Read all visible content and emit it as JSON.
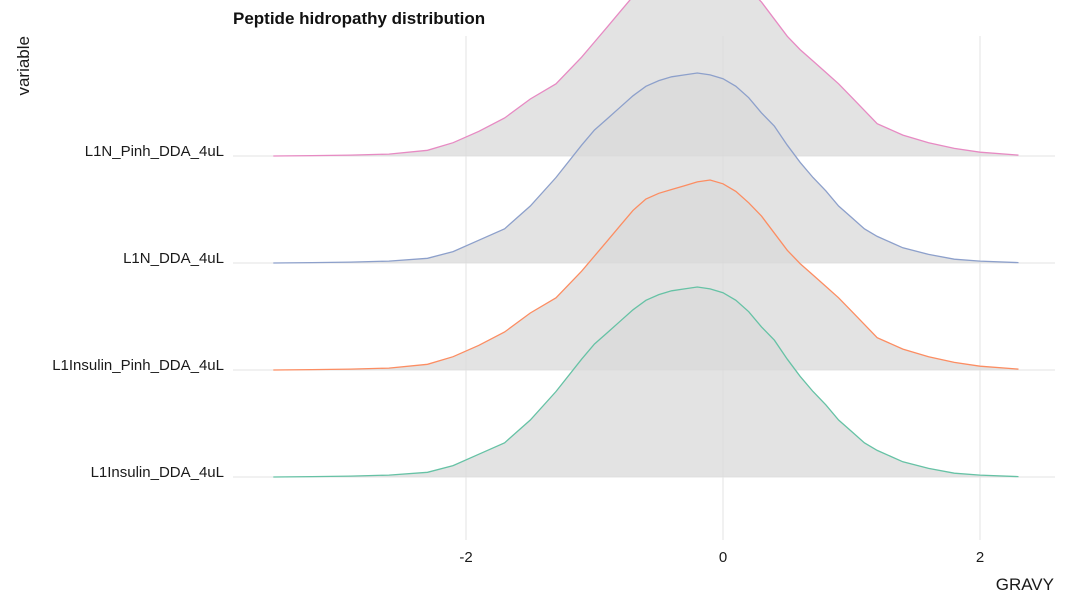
{
  "chart_data": {
    "type": "area",
    "title": "Peptide hidropathy distribution",
    "xlabel": "GRAVY",
    "ylabel": "variable",
    "xlim": [
      -3.6,
      2.6
    ],
    "x_ticks": [
      -2,
      0,
      2
    ],
    "x_tick_labels": [
      "-2",
      "0",
      "2"
    ],
    "grid": true,
    "fill_color": "#d9d9d9",
    "x": [
      -3.5,
      -3.2,
      -2.9,
      -2.6,
      -2.3,
      -2.1,
      -1.9,
      -1.7,
      -1.5,
      -1.3,
      -1.1,
      -1.0,
      -0.9,
      -0.8,
      -0.7,
      -0.6,
      -0.5,
      -0.4,
      -0.3,
      -0.2,
      -0.1,
      0.0,
      0.1,
      0.2,
      0.3,
      0.4,
      0.5,
      0.6,
      0.7,
      0.8,
      0.9,
      1.0,
      1.1,
      1.2,
      1.4,
      1.6,
      1.8,
      2.0,
      2.3
    ],
    "series": [
      {
        "name": "L1Insulin_DDA_4uL",
        "color": "#66c2a5",
        "density": [
          0.0,
          0.002,
          0.005,
          0.01,
          0.025,
          0.06,
          0.12,
          0.18,
          0.3,
          0.45,
          0.62,
          0.7,
          0.76,
          0.82,
          0.88,
          0.93,
          0.96,
          0.98,
          0.99,
          1.0,
          0.99,
          0.97,
          0.93,
          0.87,
          0.79,
          0.72,
          0.62,
          0.53,
          0.45,
          0.38,
          0.3,
          0.24,
          0.18,
          0.14,
          0.08,
          0.045,
          0.02,
          0.01,
          0.002
        ]
      },
      {
        "name": "L1Insulin_Pinh_DDA_4uL",
        "color": "#fc8d62",
        "density": [
          0.0,
          0.002,
          0.005,
          0.01,
          0.03,
          0.07,
          0.13,
          0.2,
          0.3,
          0.38,
          0.52,
          0.6,
          0.68,
          0.76,
          0.84,
          0.9,
          0.93,
          0.95,
          0.97,
          0.99,
          1.0,
          0.98,
          0.94,
          0.88,
          0.81,
          0.72,
          0.63,
          0.56,
          0.5,
          0.44,
          0.38,
          0.31,
          0.24,
          0.17,
          0.11,
          0.07,
          0.04,
          0.02,
          0.005
        ]
      },
      {
        "name": "L1N_DDA_4uL",
        "color": "#8da0cb",
        "density": [
          0.0,
          0.002,
          0.005,
          0.01,
          0.025,
          0.06,
          0.12,
          0.18,
          0.3,
          0.45,
          0.62,
          0.7,
          0.76,
          0.82,
          0.88,
          0.93,
          0.96,
          0.98,
          0.99,
          1.0,
          0.99,
          0.97,
          0.93,
          0.87,
          0.79,
          0.72,
          0.62,
          0.53,
          0.45,
          0.38,
          0.3,
          0.24,
          0.18,
          0.14,
          0.08,
          0.045,
          0.02,
          0.01,
          0.002
        ]
      },
      {
        "name": "L1N_Pinh_DDA_4uL",
        "color": "#e78ac3",
        "density": [
          0.0,
          0.002,
          0.005,
          0.01,
          0.03,
          0.07,
          0.13,
          0.2,
          0.3,
          0.38,
          0.52,
          0.6,
          0.68,
          0.76,
          0.84,
          0.9,
          0.93,
          0.95,
          0.97,
          0.99,
          1.0,
          0.98,
          0.94,
          0.88,
          0.81,
          0.72,
          0.63,
          0.56,
          0.5,
          0.44,
          0.38,
          0.31,
          0.24,
          0.17,
          0.11,
          0.07,
          0.04,
          0.02,
          0.005
        ]
      }
    ]
  }
}
